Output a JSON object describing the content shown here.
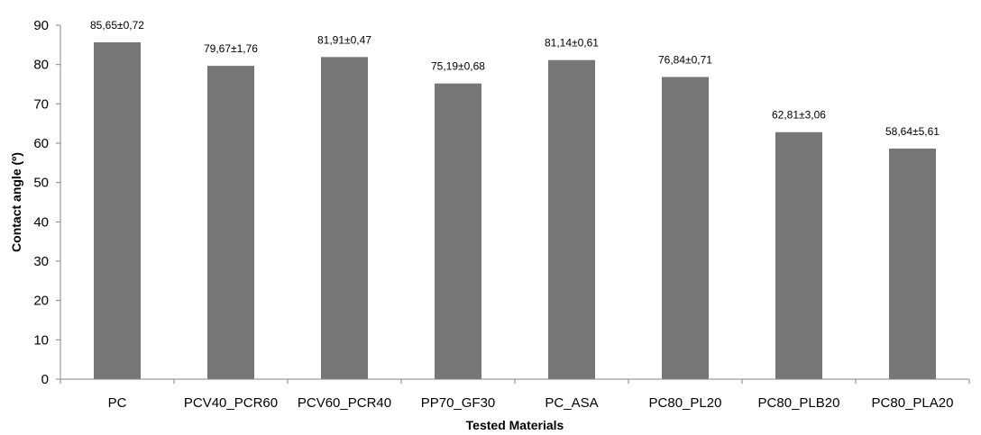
{
  "chart_data": {
    "type": "bar",
    "title": "",
    "xlabel": "Tested Materials",
    "ylabel": "Contact angle (º)",
    "ylim": [
      0,
      90
    ],
    "yticks": [
      0,
      10,
      20,
      30,
      40,
      50,
      60,
      70,
      80,
      90
    ],
    "grid": false,
    "legend": "none",
    "bar_color": "#767676",
    "categories": [
      "PC",
      "PCV40_PCR60",
      "PCV60_PCR40",
      "PP70_GF30",
      "PC_ASA",
      "PC80_PL20",
      "PC80_PLB20",
      "PC80_PLA20"
    ],
    "values": [
      85.65,
      79.67,
      81.91,
      75.19,
      81.14,
      76.84,
      62.81,
      58.64
    ],
    "errors": [
      0.72,
      1.76,
      0.47,
      0.68,
      0.61,
      0.71,
      3.06,
      5.61
    ],
    "data_labels": [
      "85,65±0,72",
      "79,67±1,76",
      "81,91±0,47",
      "75,19±0,68",
      "81,14±0,61",
      "76,84±0,71",
      "62,81±3,06",
      "58,64±5,61"
    ]
  }
}
